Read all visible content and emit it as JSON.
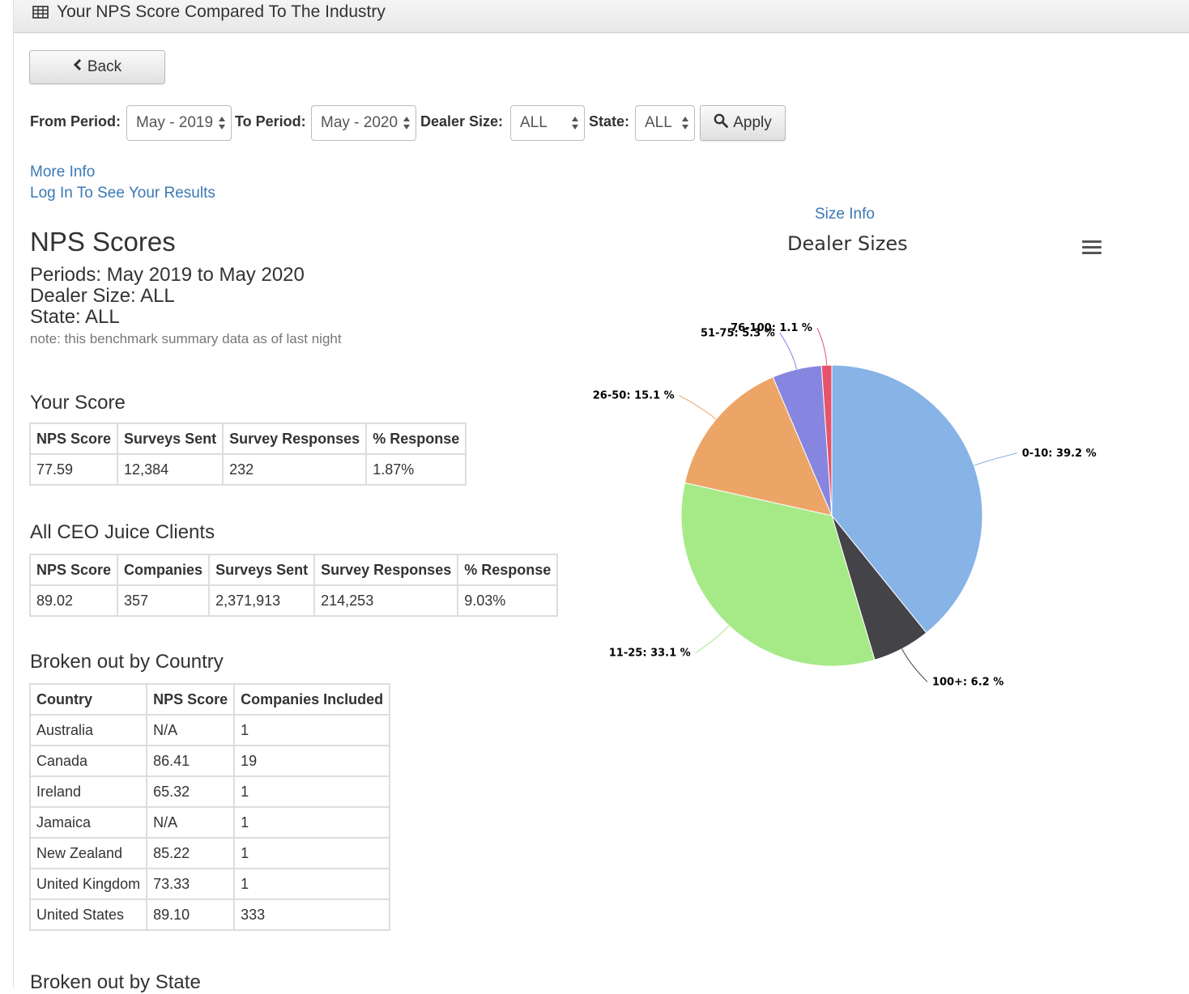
{
  "header": {
    "title": "Your NPS Score Compared To The Industry"
  },
  "back_button": {
    "label": "Back"
  },
  "filters": {
    "from_label": "From Period:",
    "from_value": "May - 2019",
    "to_label": "To Period:",
    "to_value": "May - 2020",
    "size_label": "Dealer Size:",
    "size_value": "ALL",
    "state_label": "State:",
    "state_value": "ALL",
    "apply_label": "Apply"
  },
  "links": {
    "more_info": "More Info",
    "log_in": "Log In To See Your Results",
    "size_info": "Size Info"
  },
  "summary": {
    "title": "NPS Scores",
    "periods": "Periods: May 2019 to May 2020",
    "dealer_size": "Dealer Size: ALL",
    "state": "State: ALL",
    "note": "note: this benchmark summary data as of last night"
  },
  "your_score": {
    "title": "Your Score",
    "headers": [
      "NPS Score",
      "Surveys Sent",
      "Survey Responses",
      "% Response"
    ],
    "row": [
      "77.59",
      "12,384",
      "232",
      "1.87%"
    ]
  },
  "all_clients": {
    "title": "All CEO Juice Clients",
    "headers": [
      "NPS Score",
      "Companies",
      "Surveys Sent",
      "Survey Responses",
      "% Response"
    ],
    "row": [
      "89.02",
      "357",
      "2,371,913",
      "214,253",
      "9.03%"
    ]
  },
  "by_country": {
    "title": "Broken out by Country",
    "headers": [
      "Country",
      "NPS Score",
      "Companies Included"
    ],
    "rows": [
      [
        "Australia",
        "N/A",
        "1"
      ],
      [
        "Canada",
        "86.41",
        "19"
      ],
      [
        "Ireland",
        "65.32",
        "1"
      ],
      [
        "Jamaica",
        "N/A",
        "1"
      ],
      [
        "New Zealand",
        "85.22",
        "1"
      ],
      [
        "United Kingdom",
        "73.33",
        "1"
      ],
      [
        "United States",
        "89.10",
        "333"
      ]
    ]
  },
  "by_state": {
    "title": "Broken out by State"
  },
  "chart_data": {
    "type": "pie",
    "title": "Dealer Sizes",
    "slices": [
      {
        "label": "0-10",
        "value": 39.2,
        "color": "#87b3e6"
      },
      {
        "label": "100+",
        "value": 6.2,
        "color": "#434348"
      },
      {
        "label": "11-25",
        "value": 33.1,
        "color": "#a6ea88"
      },
      {
        "label": "26-50",
        "value": 15.1,
        "color": "#eca567"
      },
      {
        "label": "51-75",
        "value": 5.3,
        "color": "#8686e0"
      },
      {
        "label": "76-100",
        "value": 1.1,
        "color": "#e5546b"
      }
    ]
  }
}
